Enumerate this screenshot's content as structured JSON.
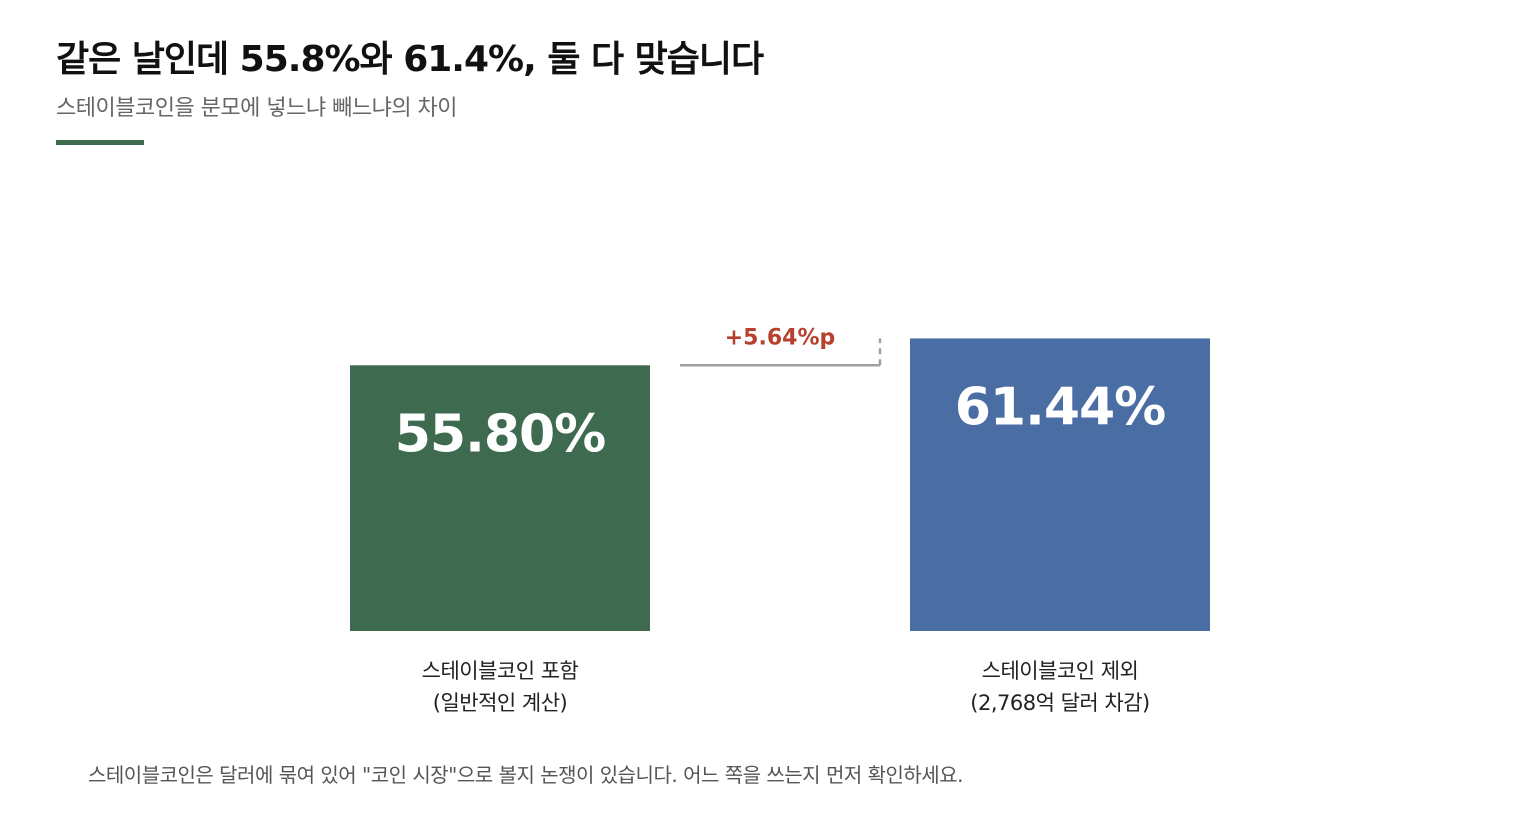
{
  "title": "같은 날인데 55.8%와 61.4%, 둘 다 맞습니다",
  "subtitle": "스테이블코인을 분모에 넣느냐 빼느냐의 차이",
  "accent_color": "#3e6b50",
  "chart_data": {
    "type": "bar",
    "categories": [
      "스테이블코인 포함 (일반적인 계산)",
      "스테이블코인 제외 (2,768억 달러 차감)"
    ],
    "category_lines": [
      [
        "스테이블코인 포함",
        "(일반적인 계산)"
      ],
      [
        "스테이블코인 제외",
        "(2,768억 달러 차감)"
      ]
    ],
    "values": [
      55.8,
      61.44
    ],
    "value_labels": [
      "55.80%",
      "61.44%"
    ],
    "colors": [
      "#3e6b50",
      "#4a6ea3"
    ],
    "difference_label": "+5.64%p",
    "difference_color": "#b5412e",
    "ylim": [
      0,
      105
    ],
    "grid": false,
    "xlabel": "",
    "ylabel": ""
  },
  "footnote": "스테이블코인은 달러에 묶여 있어 \"코인 시장\"으로 볼지 논쟁이 있습니다. 어느 쪽을 쓰는지 먼저 확인하세요."
}
